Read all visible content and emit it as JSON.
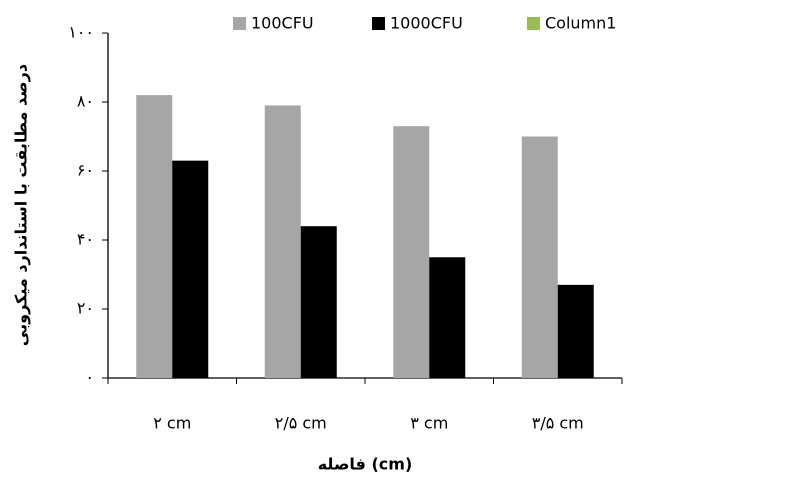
{
  "chart_data": {
    "type": "bar",
    "categories": [
      "۲ cm",
      "۲/۵ cm",
      "۳ cm",
      "۳/۵ cm"
    ],
    "series": [
      {
        "name": "100CFU",
        "color": "#a6a6a6",
        "values": [
          82,
          79,
          73,
          70
        ]
      },
      {
        "name": "1000CFU",
        "color": "#000000",
        "values": [
          63,
          44,
          35,
          27
        ]
      },
      {
        "name": "Column1",
        "color": "#9bbb59",
        "values": [
          null,
          null,
          null,
          null
        ]
      }
    ],
    "ylim": [
      0,
      100
    ],
    "yticks": [
      {
        "value": 0,
        "label": "۰"
      },
      {
        "value": 20,
        "label": "۲۰"
      },
      {
        "value": 40,
        "label": "۴۰"
      },
      {
        "value": 60,
        "label": "۶۰"
      },
      {
        "value": 80,
        "label": "۸۰"
      },
      {
        "value": 100,
        "label": "۱۰۰"
      }
    ],
    "y_label": "درصد مطابقت با استاندارد میکروبی",
    "x_label": "فاصله (cm)",
    "legend": "top",
    "grid": false
  }
}
